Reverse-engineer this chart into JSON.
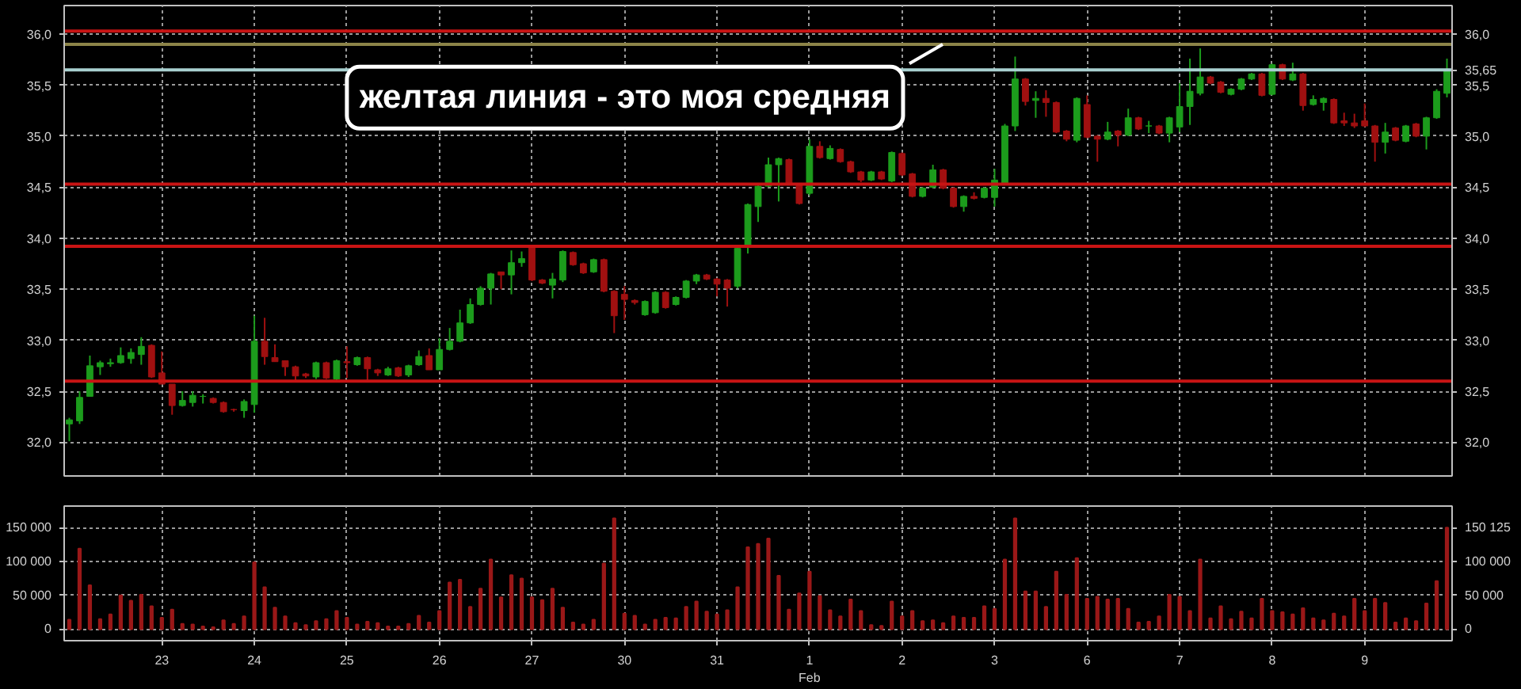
{
  "chart_data": [
    {
      "type": "candlestick",
      "categories": [
        null,
        null,
        null,
        null,
        null,
        null,
        null,
        null,
        null,
        null,
        null,
        null,
        null,
        null,
        null,
        null,
        null,
        null,
        null,
        null,
        null,
        null,
        null,
        null,
        null,
        null,
        null,
        null,
        null,
        null,
        null,
        null,
        null,
        null,
        null,
        null,
        null,
        null,
        null,
        null,
        null,
        null,
        null,
        null,
        null,
        null,
        null,
        null,
        null,
        null,
        null,
        null,
        null,
        null,
        null,
        null,
        null,
        null,
        null,
        null,
        null,
        null,
        null,
        null,
        null,
        null,
        null,
        null,
        null,
        null,
        null,
        null,
        null,
        null,
        null,
        null,
        null,
        null,
        null,
        null,
        null,
        null,
        null,
        null,
        null,
        null,
        null,
        null,
        null,
        null,
        null,
        null,
        null,
        null,
        null,
        null,
        null,
        null,
        null,
        null,
        null,
        null,
        null,
        null,
        null,
        null,
        null,
        null,
        null,
        null,
        null,
        null,
        null,
        null,
        null,
        null,
        null,
        null,
        null,
        null,
        null,
        null,
        null,
        null,
        null,
        null,
        null,
        null,
        null,
        null,
        null,
        null,
        null,
        null,
        null
      ],
      "ohlc": [
        [
          32.18,
          32.24,
          32.01,
          32.22
        ],
        [
          32.21,
          32.5,
          32.18,
          32.44
        ],
        [
          32.45,
          32.85,
          32.45,
          32.75
        ],
        [
          32.74,
          32.8,
          32.66,
          32.78
        ],
        [
          32.77,
          32.82,
          32.74,
          32.78
        ],
        [
          32.78,
          32.93,
          32.77,
          32.85
        ],
        [
          32.82,
          32.92,
          32.77,
          32.88
        ],
        [
          32.86,
          33.03,
          32.76,
          32.94
        ],
        [
          32.95,
          32.96,
          32.63,
          32.64
        ],
        [
          32.68,
          32.89,
          32.57,
          32.57
        ],
        [
          32.57,
          32.57,
          32.27,
          32.36
        ],
        [
          32.36,
          32.5,
          32.35,
          32.41
        ],
        [
          32.39,
          32.5,
          32.35,
          32.46
        ],
        [
          32.45,
          32.47,
          32.38,
          32.45
        ],
        [
          32.43,
          32.44,
          32.38,
          32.39
        ],
        [
          32.39,
          32.4,
          32.29,
          32.3
        ],
        [
          32.32,
          32.33,
          32.3,
          32.32
        ],
        [
          32.31,
          32.42,
          32.24,
          32.4
        ],
        [
          32.37,
          33.24,
          32.29,
          32.99
        ],
        [
          32.99,
          33.22,
          32.76,
          32.84
        ],
        [
          32.83,
          32.96,
          32.79,
          32.79
        ],
        [
          32.8,
          32.8,
          32.65,
          32.74
        ],
        [
          32.74,
          32.75,
          32.6,
          32.65
        ],
        [
          32.67,
          32.68,
          32.63,
          32.65
        ],
        [
          32.64,
          32.79,
          32.62,
          32.78
        ],
        [
          32.78,
          32.79,
          32.62,
          32.63
        ],
        [
          32.62,
          32.81,
          32.6,
          32.8
        ],
        [
          32.79,
          32.94,
          32.63,
          32.78
        ],
        [
          32.76,
          32.84,
          32.75,
          32.83
        ],
        [
          32.83,
          32.84,
          32.6,
          32.72
        ],
        [
          32.71,
          32.72,
          32.65,
          32.68
        ],
        [
          32.66,
          32.74,
          32.65,
          32.72
        ],
        [
          32.73,
          32.74,
          32.64,
          32.65
        ],
        [
          32.66,
          32.76,
          32.64,
          32.75
        ],
        [
          32.76,
          32.9,
          32.75,
          32.84
        ],
        [
          32.85,
          32.92,
          32.71,
          32.71
        ],
        [
          32.71,
          33.02,
          32.71,
          32.91
        ],
        [
          32.91,
          33.12,
          32.9,
          32.99
        ],
        [
          32.99,
          33.3,
          32.98,
          33.17
        ],
        [
          33.17,
          33.41,
          33.16,
          33.35
        ],
        [
          33.35,
          33.53,
          33.34,
          33.51
        ],
        [
          33.51,
          33.66,
          33.35,
          33.65
        ],
        [
          33.67,
          33.67,
          33.5,
          33.64
        ],
        [
          33.64,
          33.88,
          33.45,
          33.76
        ],
        [
          33.76,
          33.87,
          33.72,
          33.8
        ],
        [
          33.91,
          33.93,
          33.58,
          33.59
        ],
        [
          33.59,
          33.6,
          33.55,
          33.56
        ],
        [
          33.54,
          33.66,
          33.41,
          33.6
        ],
        [
          33.59,
          33.88,
          33.57,
          33.87
        ],
        [
          33.86,
          33.87,
          33.73,
          33.74
        ],
        [
          33.75,
          33.76,
          33.65,
          33.66
        ],
        [
          33.67,
          33.8,
          33.66,
          33.79
        ],
        [
          33.79,
          33.8,
          33.47,
          33.48
        ],
        [
          33.48,
          33.49,
          33.07,
          33.24
        ],
        [
          33.45,
          33.53,
          33.2,
          33.4
        ],
        [
          33.39,
          33.4,
          33.35,
          33.37
        ],
        [
          33.25,
          33.39,
          33.24,
          33.38
        ],
        [
          33.27,
          33.48,
          33.26,
          33.47
        ],
        [
          33.47,
          33.48,
          33.31,
          33.32
        ],
        [
          33.35,
          33.43,
          33.34,
          33.42
        ],
        [
          33.42,
          33.59,
          33.41,
          33.58
        ],
        [
          33.58,
          33.65,
          33.55,
          33.64
        ],
        [
          33.64,
          33.65,
          33.59,
          33.6
        ],
        [
          33.6,
          33.61,
          33.43,
          33.55
        ],
        [
          33.59,
          33.6,
          33.33,
          33.51
        ],
        [
          33.53,
          33.91,
          33.51,
          33.9
        ],
        [
          33.91,
          34.34,
          33.85,
          34.33
        ],
        [
          34.31,
          34.52,
          34.16,
          34.51
        ],
        [
          34.51,
          34.79,
          34.5,
          34.72
        ],
        [
          34.72,
          34.79,
          34.36,
          34.78
        ],
        [
          34.77,
          34.78,
          34.52,
          34.53
        ],
        [
          34.53,
          34.54,
          34.33,
          34.34
        ],
        [
          34.44,
          34.97,
          34.42,
          34.9
        ],
        [
          34.9,
          34.95,
          34.78,
          34.79
        ],
        [
          34.78,
          34.91,
          34.77,
          34.88
        ],
        [
          34.87,
          34.88,
          34.74,
          34.75
        ],
        [
          34.75,
          34.76,
          34.64,
          34.65
        ],
        [
          34.65,
          34.66,
          34.55,
          34.57
        ],
        [
          34.57,
          34.66,
          34.56,
          34.65
        ],
        [
          34.65,
          34.66,
          34.57,
          34.58
        ],
        [
          34.56,
          34.85,
          34.55,
          34.84
        ],
        [
          34.83,
          34.84,
          34.61,
          34.62
        ],
        [
          34.63,
          34.64,
          34.4,
          34.41
        ],
        [
          34.41,
          34.5,
          34.4,
          34.49
        ],
        [
          34.5,
          34.72,
          34.49,
          34.67
        ],
        [
          34.67,
          34.68,
          34.48,
          34.49
        ],
        [
          34.49,
          34.5,
          34.3,
          34.31
        ],
        [
          34.31,
          34.42,
          34.26,
          34.41
        ],
        [
          34.41,
          34.45,
          34.38,
          34.39
        ],
        [
          34.4,
          34.5,
          34.39,
          34.49
        ],
        [
          34.4,
          34.68,
          34.31,
          34.57
        ],
        [
          34.54,
          35.12,
          34.53,
          35.1
        ],
        [
          35.1,
          35.78,
          35.05,
          35.56
        ],
        [
          35.56,
          35.57,
          35.3,
          35.34
        ],
        [
          35.35,
          35.44,
          35.18,
          35.37
        ],
        [
          35.37,
          35.45,
          35.19,
          35.33
        ],
        [
          35.33,
          35.34,
          35.03,
          35.04
        ],
        [
          35.05,
          35.06,
          34.95,
          34.97
        ],
        [
          34.96,
          35.38,
          34.94,
          35.37
        ],
        [
          35.31,
          35.4,
          34.98,
          34.99
        ],
        [
          35.0,
          35.01,
          34.75,
          34.97
        ],
        [
          34.97,
          35.14,
          34.96,
          35.04
        ],
        [
          35.05,
          35.06,
          34.9,
          35.01
        ],
        [
          35.01,
          35.27,
          35.0,
          35.18
        ],
        [
          35.18,
          35.19,
          35.06,
          35.07
        ],
        [
          35.1,
          35.15,
          35.03,
          35.1
        ],
        [
          35.1,
          35.11,
          35.02,
          35.03
        ],
        [
          35.03,
          35.19,
          34.94,
          35.18
        ],
        [
          35.09,
          35.52,
          35.04,
          35.29
        ],
        [
          35.29,
          35.76,
          35.11,
          35.44
        ],
        [
          35.42,
          35.86,
          35.4,
          35.58
        ],
        [
          35.58,
          35.59,
          35.51,
          35.52
        ],
        [
          35.53,
          35.54,
          35.42,
          35.43
        ],
        [
          35.41,
          35.47,
          35.4,
          35.46
        ],
        [
          35.46,
          35.57,
          35.45,
          35.56
        ],
        [
          35.56,
          35.62,
          35.55,
          35.61
        ],
        [
          35.61,
          35.62,
          35.39,
          35.4
        ],
        [
          35.41,
          35.71,
          35.4,
          35.7
        ],
        [
          35.7,
          35.71,
          35.55,
          35.56
        ],
        [
          35.55,
          35.72,
          35.54,
          35.61
        ],
        [
          35.61,
          35.62,
          35.25,
          35.3
        ],
        [
          35.31,
          35.4,
          35.3,
          35.36
        ],
        [
          35.33,
          35.38,
          35.25,
          35.37
        ],
        [
          35.36,
          35.37,
          35.12,
          35.13
        ],
        [
          35.15,
          35.23,
          35.1,
          35.13
        ],
        [
          35.13,
          35.22,
          35.08,
          35.1
        ],
        [
          35.15,
          35.32,
          35.09,
          35.1
        ],
        [
          35.1,
          35.11,
          34.75,
          34.94
        ],
        [
          34.94,
          35.13,
          34.83,
          35.04
        ],
        [
          35.08,
          35.09,
          34.95,
          34.96
        ],
        [
          34.95,
          35.11,
          34.94,
          35.1
        ],
        [
          35.12,
          35.13,
          34.99,
          35.0
        ],
        [
          35.0,
          35.19,
          34.87,
          35.18
        ],
        [
          35.18,
          35.46,
          35.17,
          35.44
        ],
        [
          35.42,
          35.76,
          35.38,
          35.65
        ]
      ],
      "colors": [
        "#1c9c1c",
        "#1c9c1c",
        "#1c9c1c",
        "#1c9c1c",
        "#1c9c1c",
        "#1c9c1c",
        "#1c9c1c",
        "#1c9c1c",
        "#a01010",
        "#a01010",
        "#a01010",
        "#1c9c1c",
        "#1c9c1c",
        "#1c9c1c",
        "#a01010",
        "#a01010",
        "#a01010",
        "#1c9c1c",
        "#1c9c1c",
        "#a01010",
        "#a01010",
        "#a01010",
        "#a01010",
        "#a01010",
        "#1c9c1c",
        "#a01010",
        "#1c9c1c",
        "#a01010",
        "#1c9c1c",
        "#a01010",
        "#a01010",
        "#1c9c1c",
        "#a01010",
        "#1c9c1c",
        "#1c9c1c",
        "#a01010",
        "#1c9c1c",
        "#1c9c1c",
        "#1c9c1c",
        "#1c9c1c",
        "#1c9c1c",
        "#1c9c1c",
        "#a01010",
        "#1c9c1c",
        "#1c9c1c",
        "#a01010",
        "#a01010",
        "#1c9c1c",
        "#1c9c1c",
        "#a01010",
        "#a01010",
        "#1c9c1c",
        "#a01010",
        "#a01010",
        "#a01010",
        "#a01010",
        "#1c9c1c",
        "#1c9c1c",
        "#a01010",
        "#1c9c1c",
        "#1c9c1c",
        "#1c9c1c",
        "#a01010",
        "#a01010",
        "#a01010",
        "#1c9c1c",
        "#1c9c1c",
        "#1c9c1c",
        "#1c9c1c",
        "#1c9c1c",
        "#a01010",
        "#a01010",
        "#1c9c1c",
        "#a01010",
        "#1c9c1c",
        "#a01010",
        "#a01010",
        "#a01010",
        "#1c9c1c",
        "#a01010",
        "#1c9c1c",
        "#a01010",
        "#a01010",
        "#1c9c1c",
        "#1c9c1c",
        "#a01010",
        "#a01010",
        "#1c9c1c",
        "#a01010",
        "#1c9c1c",
        "#1c9c1c",
        "#1c9c1c",
        "#1c9c1c",
        "#a01010",
        "#1c9c1c",
        "#a01010",
        "#a01010",
        "#a01010",
        "#1c9c1c",
        "#a01010",
        "#a01010",
        "#1c9c1c",
        "#a01010",
        "#1c9c1c",
        "#a01010",
        "#1c9c1c",
        "#a01010",
        "#1c9c1c",
        "#1c9c1c",
        "#1c9c1c",
        "#1c9c1c",
        "#a01010",
        "#a01010",
        "#1c9c1c",
        "#1c9c1c",
        "#1c9c1c",
        "#a01010",
        "#1c9c1c",
        "#a01010",
        "#1c9c1c",
        "#a01010",
        "#1c9c1c",
        "#1c9c1c",
        "#a01010",
        "#a01010",
        "#a01010",
        "#a01010",
        "#a01010",
        "#1c9c1c",
        "#a01010",
        "#1c9c1c",
        "#a01010",
        "#1c9c1c",
        "#1c9c1c",
        "#1c9c1c"
      ],
      "ylim": [
        31.67,
        36.28
      ],
      "yticks": [
        {
          "value": 32,
          "label": "32,0"
        },
        {
          "value": 32.5,
          "label": "32,5"
        },
        {
          "value": 33,
          "label": "33,0"
        },
        {
          "value": 33.5,
          "label": "33,5"
        },
        {
          "value": 34,
          "label": "34,0"
        },
        {
          "value": 34.5,
          "label": "34,5"
        },
        {
          "value": 35,
          "label": "35,0"
        },
        {
          "value": 35.5,
          "label": "35,5"
        },
        {
          "value": 36,
          "label": "36,0"
        }
      ],
      "y2lim": [
        31.67,
        36.28
      ],
      "y2ticks": [
        {
          "value": 35.65,
          "label": "35,65"
        },
        {
          "value": 32,
          "label": "32,0"
        },
        {
          "value": 32.5,
          "label": "32,5"
        },
        {
          "value": 33,
          "label": "33,0"
        },
        {
          "value": 33.5,
          "label": "33,5"
        },
        {
          "value": 34,
          "label": "34,0"
        },
        {
          "value": 34.5,
          "label": "34,5"
        },
        {
          "value": 35,
          "label": "35,0"
        },
        {
          "value": 35.5,
          "label": "35,5"
        },
        {
          "value": 36,
          "label": "36,0"
        }
      ],
      "grid": true,
      "ref_lines": [
        {
          "axis": "y",
          "value": 36.03,
          "color": "#c81414"
        },
        {
          "axis": "y",
          "value": 35.9,
          "color": "#8c8448"
        },
        {
          "axis": "y",
          "value": 35.65,
          "color": "#a8d0d0"
        },
        {
          "axis": "y",
          "value": 34.53,
          "color": "#c81414"
        },
        {
          "axis": "y",
          "value": 33.92,
          "color": "#c81414"
        },
        {
          "axis": "y",
          "value": 32.6,
          "color": "#c81414"
        }
      ],
      "annotations": [
        {
          "text": "желтая линия - это моя средняя",
          "y": 35.9
        }
      ]
    },
    {
      "type": "bar",
      "categories": [
        null,
        null,
        null,
        null,
        null,
        null,
        null,
        null,
        null,
        "23",
        null,
        null,
        null,
        null,
        null,
        null,
        null,
        null,
        "24",
        null,
        null,
        null,
        null,
        null,
        null,
        null,
        null,
        "25",
        null,
        null,
        null,
        null,
        null,
        null,
        null,
        null,
        "26",
        null,
        null,
        null,
        null,
        null,
        null,
        null,
        null,
        "27",
        null,
        null,
        null,
        null,
        null,
        null,
        null,
        null,
        "30",
        null,
        null,
        null,
        null,
        null,
        null,
        null,
        null,
        "31",
        null,
        null,
        null,
        null,
        null,
        null,
        null,
        null,
        "1\nFeb",
        null,
        null,
        null,
        null,
        null,
        null,
        null,
        null,
        "2",
        null,
        null,
        null,
        null,
        null,
        null,
        null,
        null,
        "3",
        null,
        null,
        null,
        null,
        null,
        null,
        null,
        null,
        "6",
        null,
        null,
        null,
        null,
        null,
        null,
        null,
        null,
        "7",
        null,
        null,
        null,
        null,
        null,
        null,
        null,
        null,
        "8",
        null,
        null,
        null,
        null,
        null,
        null,
        null,
        null,
        "9",
        null,
        null,
        null,
        null,
        null,
        null,
        null,
        null
      ],
      "values": [
        14000,
        119000,
        65000,
        15000,
        22000,
        50000,
        42000,
        51000,
        34000,
        17000,
        29000,
        8000,
        7000,
        4000,
        3000,
        13000,
        8000,
        19000,
        99000,
        62000,
        32000,
        19000,
        9000,
        6000,
        12000,
        15000,
        27000,
        17000,
        7000,
        11000,
        9000,
        4000,
        4000,
        8000,
        20000,
        10000,
        27000,
        69000,
        73000,
        33000,
        60000,
        103000,
        47000,
        80000,
        75000,
        47000,
        43000,
        60000,
        32000,
        10000,
        7000,
        14000,
        97000,
        164000,
        23000,
        20000,
        7000,
        14000,
        17000,
        16000,
        33000,
        41000,
        26000,
        22000,
        28000,
        62000,
        121000,
        126000,
        134000,
        79000,
        29000,
        53000,
        85000,
        49000,
        28000,
        19000,
        44000,
        27000,
        6000,
        5000,
        41000,
        19000,
        27000,
        12000,
        13000,
        9000,
        19000,
        17000,
        17000,
        34000,
        30000,
        103000,
        164000,
        56000,
        56000,
        33000,
        85000,
        51000,
        105000,
        45000,
        48000,
        44000,
        45000,
        30000,
        10000,
        11000,
        19000,
        51000,
        48000,
        27000,
        103000,
        16000,
        34000,
        15000,
        26000,
        16000,
        45000,
        27000,
        25000,
        22000,
        31000,
        16000,
        13000,
        23000,
        19000,
        45000,
        27000,
        45000,
        39000,
        10000,
        16000,
        12000,
        38000,
        71000,
        150125
      ],
      "color": "#9a1818",
      "ylim": [
        -17000,
        182000
      ],
      "yticks": [
        0,
        {
          "value": 50000,
          "label": "50 000"
        },
        {
          "value": 100000,
          "label": "100 000"
        },
        {
          "value": 150000,
          "label": "150 000"
        }
      ],
      "y2lim": [
        -17000,
        182000
      ],
      "y2ticks": [
        0,
        {
          "value": 50000,
          "label": "50 000"
        },
        {
          "value": 100000,
          "label": "100 000"
        },
        {
          "value": 150125,
          "label": "150 125"
        }
      ],
      "grid": true
    }
  ]
}
